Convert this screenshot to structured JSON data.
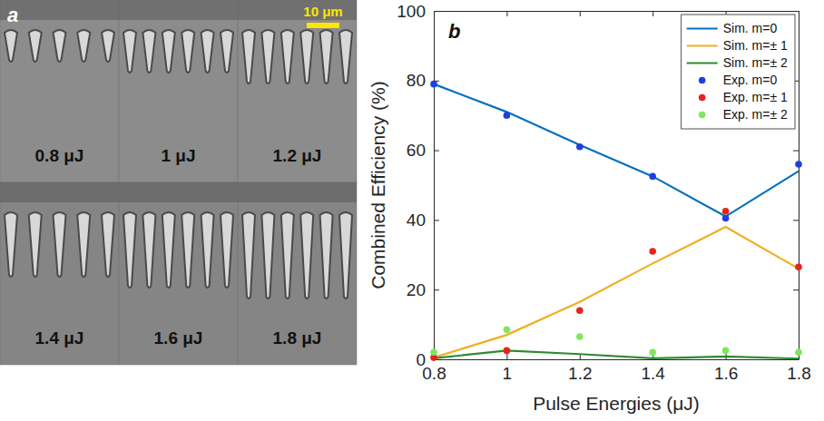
{
  "image_panel": {
    "label": "a",
    "scale_bar": "10 μm",
    "tiles": [
      "0.8 μJ",
      "1 μJ",
      "1.2 μJ",
      "1.4 μJ",
      "1.6 μJ",
      "1.8 μJ"
    ]
  },
  "chart_data": {
    "type": "line",
    "panel_label": "b",
    "x_label": "Pulse Energies (μJ)",
    "y_label": "Combined Efficiency (%)",
    "x": [
      0.8,
      1,
      1.2,
      1.4,
      1.6,
      1.8
    ],
    "series": [
      {
        "name": "Sim. m=0",
        "type": "line",
        "color": "#0072bd",
        "values": [
          79,
          71,
          61.5,
          52.5,
          41,
          54
        ]
      },
      {
        "name": "Sim. m=± 1",
        "type": "line",
        "color": "#edb120",
        "values": [
          0.5,
          7,
          16.5,
          27.5,
          38,
          26
        ]
      },
      {
        "name": "Sim. m=± 2",
        "type": "line",
        "color": "#2e8b2e",
        "values": [
          0.3,
          2.5,
          1.5,
          0.3,
          0.8,
          0.2
        ]
      },
      {
        "name": "Exp. m=0",
        "type": "scatter",
        "marker": "circle",
        "color": "#1f3fe0",
        "values": [
          79,
          70,
          61,
          52.5,
          40.5,
          56
        ]
      },
      {
        "name": "Exp. m=± 1",
        "type": "scatter",
        "marker": "circle",
        "color": "#e8231c",
        "values": [
          0.5,
          2.5,
          14,
          31,
          42.5,
          26.5
        ]
      },
      {
        "name": "Exp. m=± 2",
        "type": "scatter",
        "marker": "circle",
        "color": "#7ee85a",
        "values": [
          2,
          8.5,
          6.5,
          2,
          2.5,
          2
        ]
      }
    ],
    "xlim": [
      0.8,
      1.8
    ],
    "xticks": [
      0.8,
      1,
      1.2,
      1.4,
      1.6,
      1.8
    ],
    "ylim": [
      0,
      100
    ],
    "yticks": [
      0,
      20,
      40,
      60,
      80,
      100
    ],
    "grid": false,
    "legend": "top-right"
  }
}
